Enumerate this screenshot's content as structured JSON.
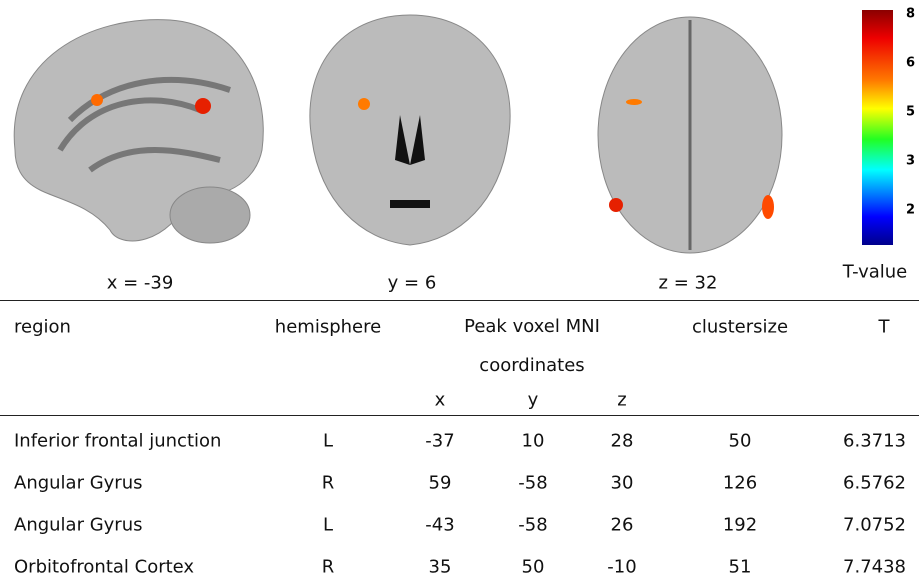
{
  "figure": {
    "slices": [
      {
        "label": "x = -39"
      },
      {
        "label": "y = 6"
      },
      {
        "label": "z = 32"
      }
    ],
    "colorbar": {
      "label": "T-value",
      "ticks": [
        8,
        6,
        5,
        3,
        2
      ]
    }
  },
  "table": {
    "header": {
      "region": "region",
      "hemisphere": "hemisphere",
      "peak": "Peak voxel MNI coordinates",
      "x": "x",
      "y": "y",
      "z": "z",
      "clustersize": "clustersize",
      "t": "T"
    },
    "rows": [
      [
        "Inferior frontal junction",
        "L",
        -37,
        10,
        28,
        50,
        6.3713
      ],
      [
        "Angular Gyrus",
        "R",
        59,
        -58,
        30,
        126,
        6.5762
      ],
      [
        "Angular Gyrus",
        "L",
        -43,
        -58,
        26,
        192,
        7.0752
      ],
      [
        "Orbitofrontal Cortex",
        "R",
        35,
        50,
        -10,
        51,
        7.7438
      ]
    ]
  }
}
